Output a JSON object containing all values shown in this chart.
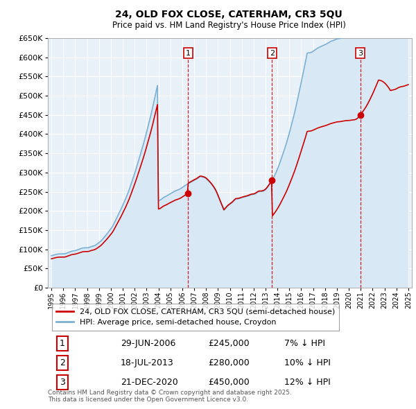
{
  "title1": "24, OLD FOX CLOSE, CATERHAM, CR3 5QU",
  "title2": "Price paid vs. HM Land Registry's House Price Index (HPI)",
  "legend_line1": "24, OLD FOX CLOSE, CATERHAM, CR3 5QU (semi-detached house)",
  "legend_line2": "HPI: Average price, semi-detached house, Croydon",
  "footer": "Contains HM Land Registry data © Crown copyright and database right 2025.\nThis data is licensed under the Open Government Licence v3.0.",
  "sale_color": "#cc0000",
  "hpi_color": "#7ab0d4",
  "hpi_fill_color": "#d8e8f5",
  "background_color": "#e8f0f8",
  "grid_color": "#ffffff",
  "ylim": [
    0,
    650000
  ],
  "ytick_step": 50000,
  "sales": [
    {
      "date": 2006.49,
      "price": 245000,
      "label": "1"
    },
    {
      "date": 2013.54,
      "price": 280000,
      "label": "2"
    },
    {
      "date": 2020.97,
      "price": 450000,
      "label": "3"
    }
  ],
  "sale_annotations": [
    {
      "num": "1",
      "date": "29-JUN-2006",
      "price": "£245,000",
      "pct": "7% ↓ HPI"
    },
    {
      "num": "2",
      "date": "18-JUL-2013",
      "price": "£280,000",
      "pct": "10% ↓ HPI"
    },
    {
      "num": "3",
      "date": "21-DEC-2020",
      "price": "£450,000",
      "pct": "12% ↓ HPI"
    }
  ],
  "vline_dates": [
    2006.49,
    2013.54,
    2020.97
  ],
  "xlim": [
    1994.7,
    2025.3
  ]
}
